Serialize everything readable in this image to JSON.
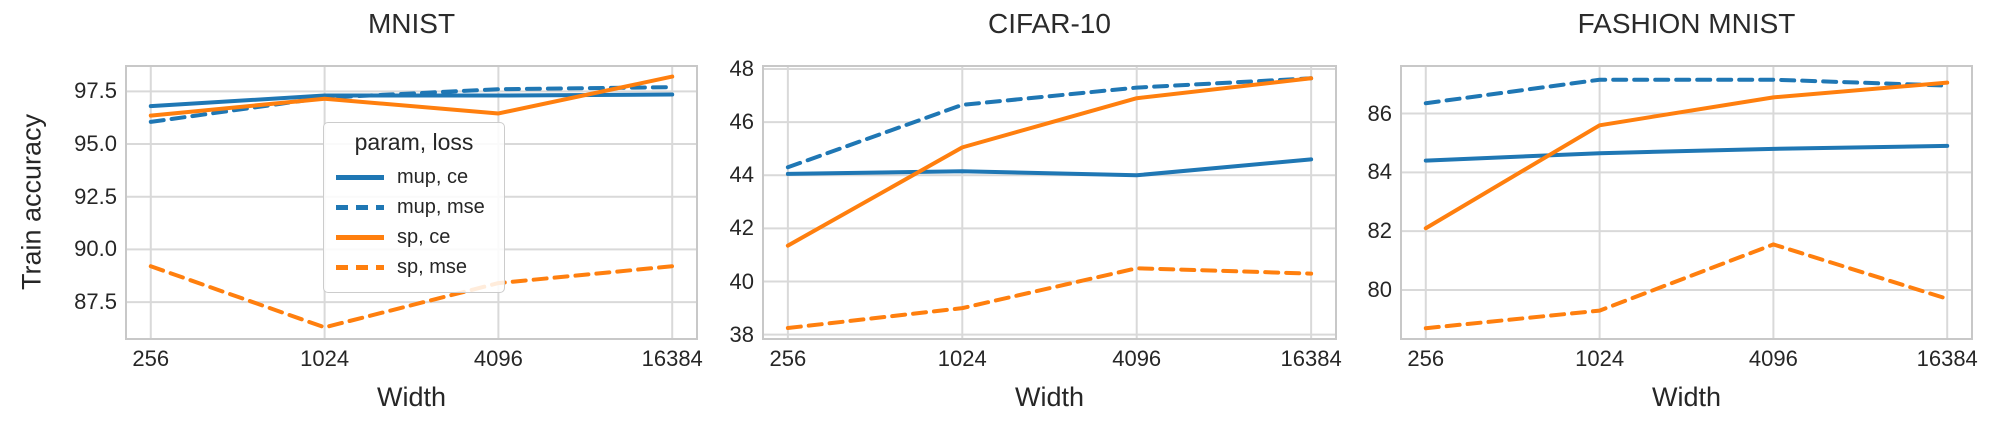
{
  "figure": {
    "ylabel": "Train accuracy",
    "xlabel": "Width"
  },
  "colors": {
    "mup": "#1f77b4",
    "sp": "#ff7f0e",
    "grid": "#d9d9d9",
    "spine": "#c8c8c8",
    "text": "#262626"
  },
  "legend": {
    "title": "param, loss",
    "entries": [
      {
        "label": "mup, ce",
        "param": "mup",
        "dashed": false
      },
      {
        "label": "mup, mse",
        "param": "mup",
        "dashed": true
      },
      {
        "label": "sp, ce",
        "param": "sp",
        "dashed": false
      },
      {
        "label": "sp, mse",
        "param": "sp",
        "dashed": true
      }
    ]
  },
  "chart_data": [
    {
      "type": "line",
      "title": "MNIST",
      "xlabel": "Width",
      "x_scale": "log2",
      "x": [
        256,
        1024,
        4096,
        16384
      ],
      "xticklabels": [
        "256",
        "1024",
        "4096",
        "16384"
      ],
      "yticks": [
        97.5,
        95.0,
        92.5,
        90.0,
        87.5
      ],
      "yticklabels": [
        "97.5",
        "95.0",
        "92.5",
        "90.0",
        "87.5"
      ],
      "ylim": [
        85.7,
        98.75
      ],
      "grid": true,
      "series": [
        {
          "name": "mup, ce",
          "param": "mup",
          "loss": "ce",
          "color": "#1f77b4",
          "dashed": false,
          "values": [
            96.8,
            97.3,
            97.3,
            97.35
          ]
        },
        {
          "name": "mup, mse",
          "param": "mup",
          "loss": "mse",
          "color": "#1f77b4",
          "dashed": true,
          "values": [
            96.05,
            97.2,
            97.6,
            97.7
          ]
        },
        {
          "name": "sp, ce",
          "param": "sp",
          "loss": "ce",
          "color": "#ff7f0e",
          "dashed": false,
          "values": [
            96.35,
            97.15,
            96.45,
            98.2
          ]
        },
        {
          "name": "sp, mse",
          "param": "sp",
          "loss": "mse",
          "color": "#ff7f0e",
          "dashed": true,
          "values": [
            89.2,
            86.3,
            88.4,
            89.2
          ]
        }
      ]
    },
    {
      "type": "line",
      "title": "CIFAR-10",
      "xlabel": "Width",
      "x_scale": "log2",
      "x": [
        256,
        1024,
        4096,
        16384
      ],
      "xticklabels": [
        "256",
        "1024",
        "4096",
        "16384"
      ],
      "yticks": [
        48,
        46,
        44,
        42,
        40,
        38
      ],
      "yticklabels": [
        "48",
        "46",
        "44",
        "42",
        "40",
        "38"
      ],
      "ylim": [
        37.8,
        48.15
      ],
      "grid": true,
      "series": [
        {
          "name": "mup, ce",
          "param": "mup",
          "loss": "ce",
          "color": "#1f77b4",
          "dashed": false,
          "values": [
            44.05,
            44.15,
            44.0,
            44.6
          ]
        },
        {
          "name": "mup, mse",
          "param": "mup",
          "loss": "mse",
          "color": "#1f77b4",
          "dashed": true,
          "values": [
            44.3,
            46.65,
            47.3,
            47.65
          ]
        },
        {
          "name": "sp, ce",
          "param": "sp",
          "loss": "ce",
          "color": "#ff7f0e",
          "dashed": false,
          "values": [
            41.35,
            45.05,
            46.9,
            47.65
          ]
        },
        {
          "name": "sp, mse",
          "param": "sp",
          "loss": "mse",
          "color": "#ff7f0e",
          "dashed": true,
          "values": [
            38.25,
            39.0,
            40.5,
            40.3
          ]
        }
      ]
    },
    {
      "type": "line",
      "title": "FASHION MNIST",
      "xlabel": "Width",
      "x_scale": "log2",
      "x": [
        256,
        1024,
        4096,
        16384
      ],
      "xticklabels": [
        "256",
        "1024",
        "4096",
        "16384"
      ],
      "yticks": [
        86,
        84,
        82,
        80
      ],
      "yticklabels": [
        "86",
        "84",
        "82",
        "80"
      ],
      "ylim": [
        78.3,
        87.65
      ],
      "grid": true,
      "series": [
        {
          "name": "mup, ce",
          "param": "mup",
          "loss": "ce",
          "color": "#1f77b4",
          "dashed": false,
          "values": [
            84.4,
            84.65,
            84.8,
            84.9
          ]
        },
        {
          "name": "mup, mse",
          "param": "mup",
          "loss": "mse",
          "color": "#1f77b4",
          "dashed": true,
          "values": [
            86.35,
            87.15,
            87.15,
            86.95
          ]
        },
        {
          "name": "sp, ce",
          "param": "sp",
          "loss": "ce",
          "color": "#ff7f0e",
          "dashed": false,
          "values": [
            82.1,
            85.6,
            86.55,
            87.05
          ]
        },
        {
          "name": "sp, mse",
          "param": "sp",
          "loss": "mse",
          "color": "#ff7f0e",
          "dashed": true,
          "values": [
            78.7,
            79.3,
            81.55,
            79.7
          ]
        }
      ]
    }
  ]
}
